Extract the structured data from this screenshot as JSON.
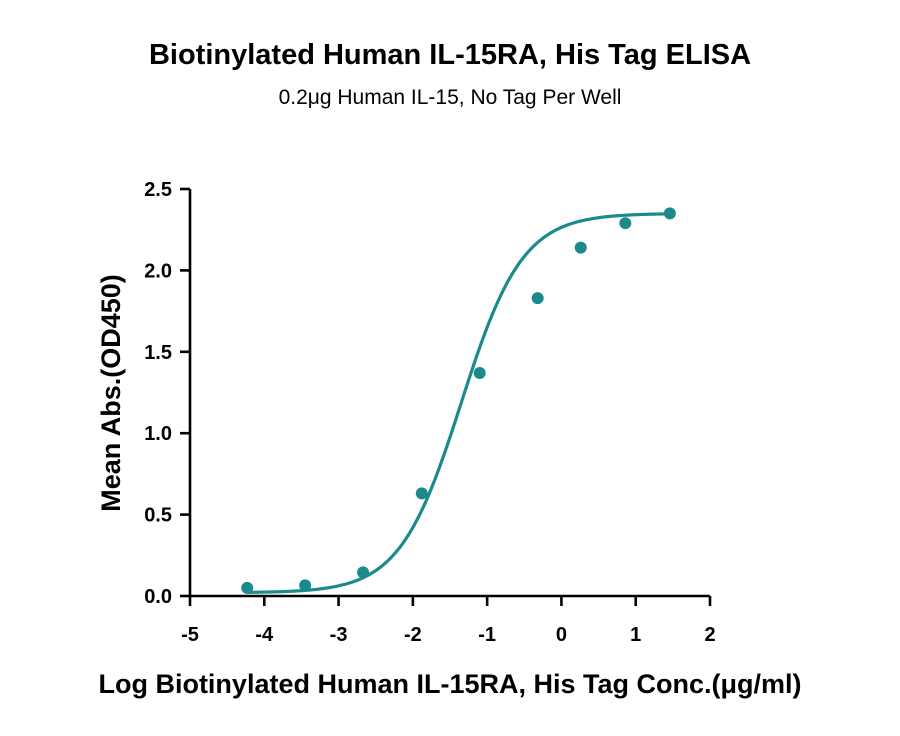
{
  "chart_data": {
    "type": "scatter",
    "title": "Biotinylated Human IL-15RA, His Tag ELISA",
    "subtitle": "0.2μg Human IL-15, No Tag Per Well",
    "xlabel": "Log Biotinylated Human IL-15RA, His Tag Conc.(μg/ml)",
    "ylabel": "Mean Abs.(OD450)",
    "xlim": [
      -5,
      2
    ],
    "ylim": [
      0,
      2.5
    ],
    "x_ticks": [
      "-5",
      "-4",
      "-3",
      "-2",
      "-1",
      "0",
      "1",
      "2"
    ],
    "y_ticks": [
      "0.0",
      "0.5",
      "1.0",
      "1.5",
      "2.0",
      "2.5"
    ],
    "grid": false,
    "legend": "none",
    "color": "#1a8a8a",
    "series": [
      {
        "points": [
          {
            "x": -4.23,
            "y": 0.05
          },
          {
            "x": -3.45,
            "y": 0.065
          },
          {
            "x": -2.67,
            "y": 0.145
          },
          {
            "x": -1.88,
            "y": 0.63
          },
          {
            "x": -1.1,
            "y": 1.37
          },
          {
            "x": -0.32,
            "y": 1.83
          },
          {
            "x": 0.26,
            "y": 2.14
          },
          {
            "x": 0.86,
            "y": 2.29
          },
          {
            "x": 1.46,
            "y": 2.35
          }
        ],
        "fit": {
          "model": "4PL",
          "bottom": 0.02,
          "top": 2.35,
          "logEC50": -1.35,
          "hill": 1.05
        }
      }
    ]
  }
}
